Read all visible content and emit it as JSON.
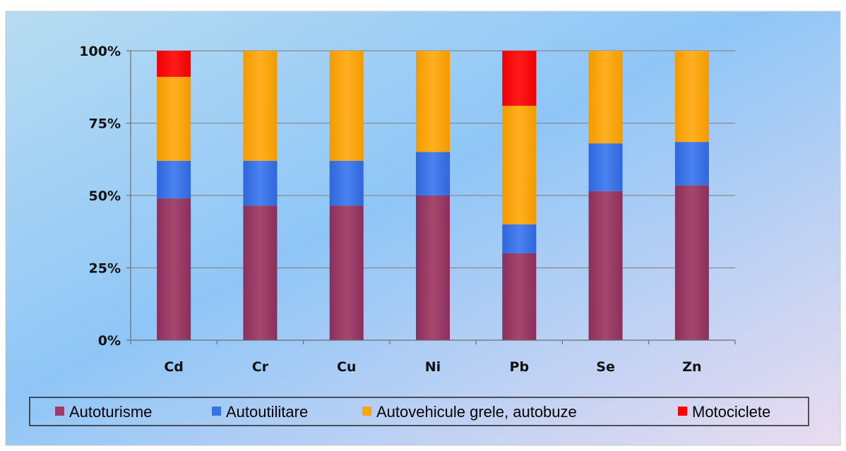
{
  "chart_data": {
    "type": "bar",
    "stacked": true,
    "percent_stacked": true,
    "categories": [
      "Cd",
      "Cr",
      "Cu",
      "Ni",
      "Pb",
      "Se",
      "Zn"
    ],
    "series": [
      {
        "name": "Autoturisme",
        "color": "#9B3C6B",
        "values": [
          49,
          46.5,
          46.5,
          50,
          30,
          51.5,
          53.5
        ]
      },
      {
        "name": "Autoutilitare",
        "color": "#3973E8",
        "values": [
          13,
          15.5,
          15.5,
          15,
          10,
          16.5,
          15
        ]
      },
      {
        "name": "Autovehicule grele, autobuze",
        "color": "#FFA500",
        "values": [
          29,
          38,
          38,
          35,
          41,
          32,
          31.5
        ]
      },
      {
        "name": "Motociclete",
        "color": "#FF0000",
        "values": [
          9,
          0,
          0,
          0,
          19,
          0,
          0
        ]
      }
    ],
    "yticks": [
      "0%",
      "25%",
      "50%",
      "75%",
      "100%"
    ],
    "ylim": [
      0,
      100
    ],
    "grid": true,
    "legend_position": "bottom",
    "title": "",
    "xlabel": "",
    "ylabel": ""
  }
}
